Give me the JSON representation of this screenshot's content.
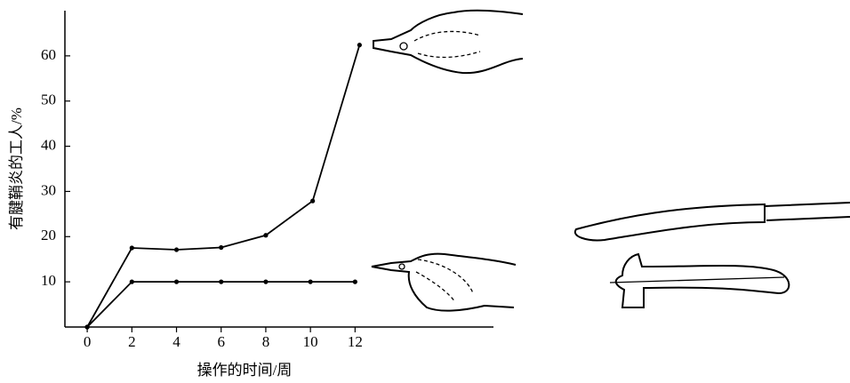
{
  "chart_data": {
    "type": "line",
    "x_label": "操作的时间/周",
    "y_label": "有腱鞘炎的工人/%",
    "series": [
      {
        "color": "#000000",
        "x": [
          0,
          2,
          4,
          6,
          8,
          10.1,
          12.2
        ],
        "values": [
          0,
          17.5,
          17.1,
          17.6,
          20.3,
          27.9,
          62.4
        ]
      },
      {
        "color": "#000000",
        "x": [
          0,
          2,
          4,
          6,
          8,
          10,
          12
        ],
        "values": [
          0,
          10,
          10,
          10,
          10,
          10,
          10
        ]
      }
    ],
    "xlim": [
      -1,
      18.2
    ],
    "ylim": [
      0,
      70
    ],
    "xticks": [
      0,
      2,
      4,
      6,
      8,
      10,
      12
    ],
    "yticks": [
      10,
      20,
      30,
      40,
      50,
      60
    ]
  }
}
